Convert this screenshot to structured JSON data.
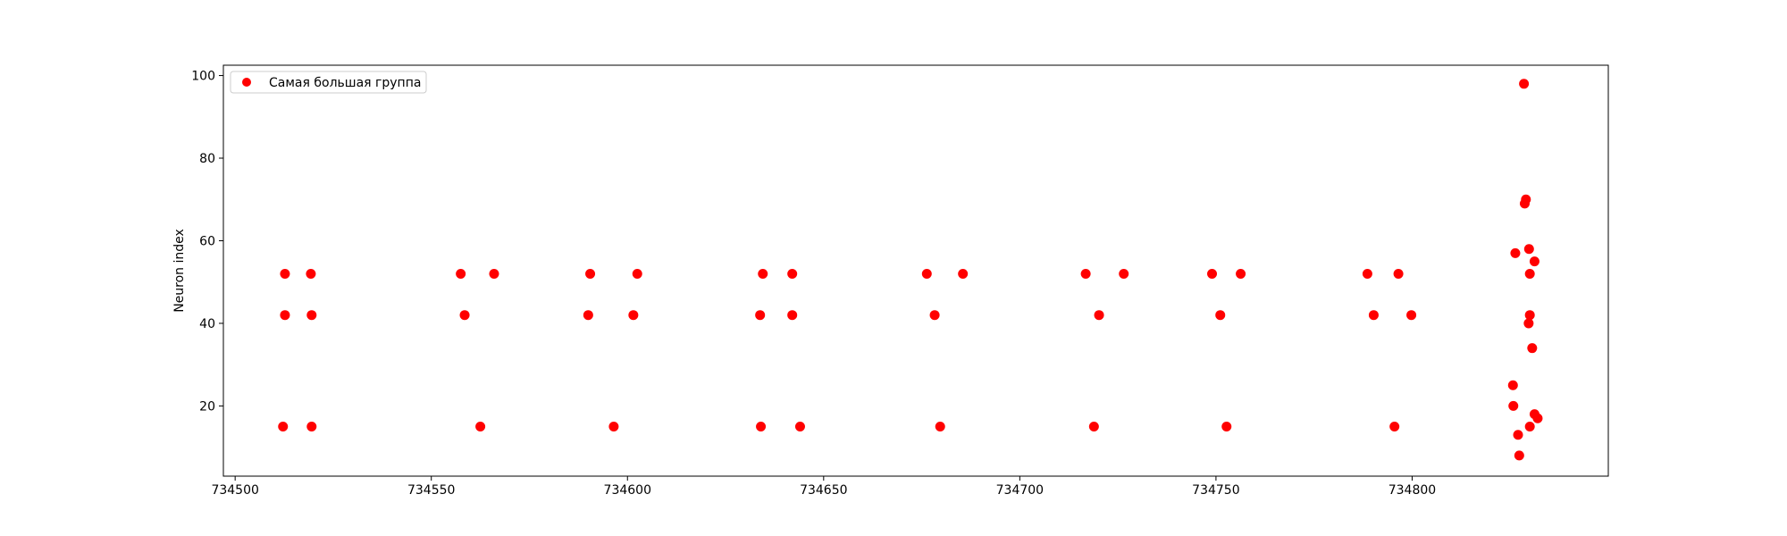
{
  "chart_data": {
    "type": "scatter",
    "title": "",
    "xlabel": "",
    "ylabel": "Neuron index",
    "xlim": [
      734497,
      734850
    ],
    "ylim": [
      3,
      102.5
    ],
    "xticks": [
      734500,
      734550,
      734600,
      734650,
      734700,
      734750,
      734800
    ],
    "yticks": [
      20,
      40,
      60,
      80,
      100
    ],
    "grid": false,
    "legend_position": "top-left",
    "series": [
      {
        "name": "Самая большая группа",
        "color": "#ff0000",
        "marker": "circle",
        "points": [
          {
            "x": 734512.7,
            "y": 52
          },
          {
            "x": 734512.7,
            "y": 42
          },
          {
            "x": 734512.2,
            "y": 15
          },
          {
            "x": 734519.3,
            "y": 52
          },
          {
            "x": 734519.5,
            "y": 42
          },
          {
            "x": 734519.5,
            "y": 15
          },
          {
            "x": 734557.5,
            "y": 52
          },
          {
            "x": 734558.5,
            "y": 42
          },
          {
            "x": 734562.5,
            "y": 15
          },
          {
            "x": 734566.0,
            "y": 52
          },
          {
            "x": 734590.5,
            "y": 52
          },
          {
            "x": 734590.0,
            "y": 42
          },
          {
            "x": 734596.5,
            "y": 15
          },
          {
            "x": 734602.5,
            "y": 52
          },
          {
            "x": 734601.5,
            "y": 42
          },
          {
            "x": 734634.5,
            "y": 52
          },
          {
            "x": 734633.8,
            "y": 42
          },
          {
            "x": 734634.0,
            "y": 15
          },
          {
            "x": 734642.0,
            "y": 52
          },
          {
            "x": 734642.0,
            "y": 42
          },
          {
            "x": 734644.0,
            "y": 15
          },
          {
            "x": 734676.3,
            "y": 52
          },
          {
            "x": 734678.3,
            "y": 42
          },
          {
            "x": 734679.7,
            "y": 15
          },
          {
            "x": 734685.5,
            "y": 52
          },
          {
            "x": 734716.8,
            "y": 52
          },
          {
            "x": 734720.2,
            "y": 42
          },
          {
            "x": 734718.9,
            "y": 15
          },
          {
            "x": 734726.5,
            "y": 52
          },
          {
            "x": 734749.0,
            "y": 52
          },
          {
            "x": 734751.1,
            "y": 42
          },
          {
            "x": 734752.7,
            "y": 15
          },
          {
            "x": 734756.3,
            "y": 52
          },
          {
            "x": 734788.6,
            "y": 52
          },
          {
            "x": 734790.2,
            "y": 42
          },
          {
            "x": 734795.5,
            "y": 15
          },
          {
            "x": 734796.5,
            "y": 52
          },
          {
            "x": 734799.8,
            "y": 42
          },
          {
            "x": 734828.5,
            "y": 98
          },
          {
            "x": 734829.0,
            "y": 70
          },
          {
            "x": 734828.7,
            "y": 69
          },
          {
            "x": 734826.3,
            "y": 57
          },
          {
            "x": 734829.8,
            "y": 58
          },
          {
            "x": 734831.2,
            "y": 55
          },
          {
            "x": 734830.0,
            "y": 52
          },
          {
            "x": 734830.0,
            "y": 42
          },
          {
            "x": 734829.7,
            "y": 40
          },
          {
            "x": 734830.6,
            "y": 34
          },
          {
            "x": 734825.7,
            "y": 25
          },
          {
            "x": 734825.8,
            "y": 20
          },
          {
            "x": 734831.2,
            "y": 18
          },
          {
            "x": 734832.0,
            "y": 17
          },
          {
            "x": 734830.0,
            "y": 15
          },
          {
            "x": 734827.0,
            "y": 13
          },
          {
            "x": 734827.3,
            "y": 8
          }
        ]
      }
    ]
  }
}
